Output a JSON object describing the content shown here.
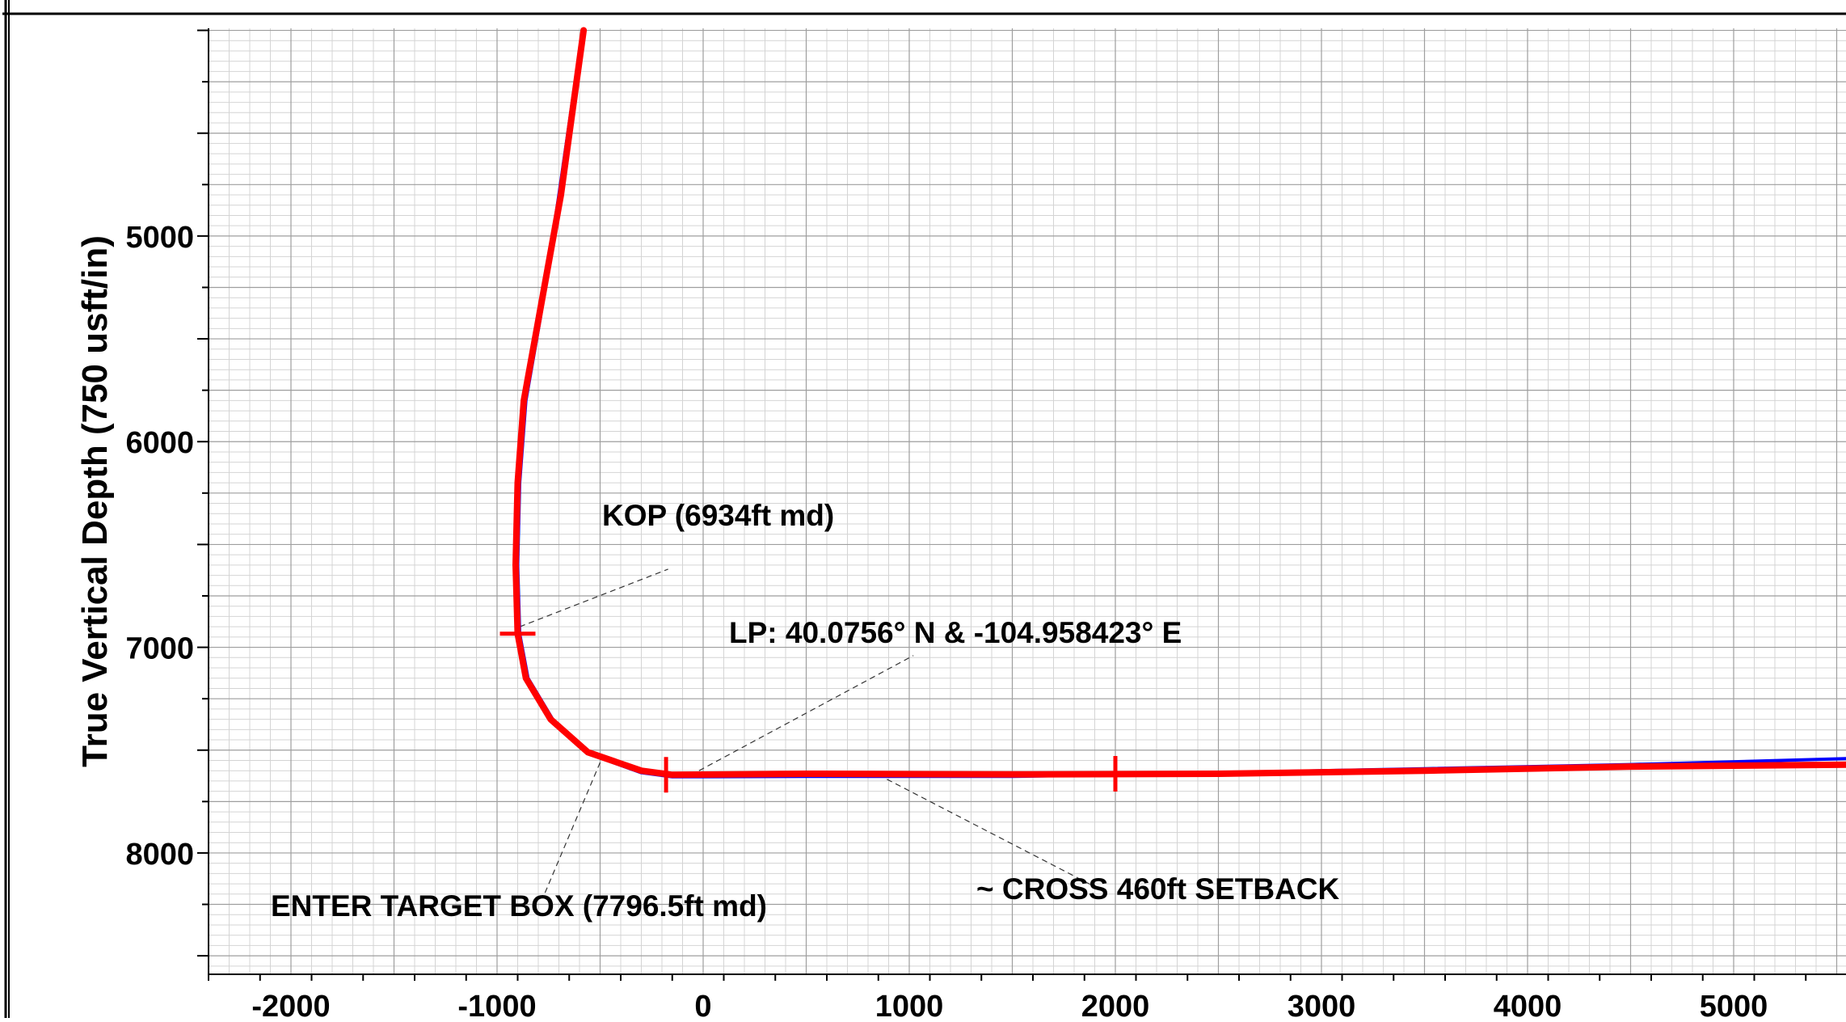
{
  "chart_data": {
    "type": "line",
    "ylabel": "True Vertical Depth (750 usft/in)",
    "xlabel": "",
    "title": "",
    "xlim": [
      -2400,
      5600
    ],
    "ylim": [
      8590,
      3990
    ],
    "x_ticks": [
      -2000,
      -1000,
      0,
      1000,
      2000,
      3000,
      4000,
      5000
    ],
    "x_tick_labels": [
      "-2000",
      "-1000",
      "0",
      "1000",
      "2000",
      "3000",
      "4000",
      "5000"
    ],
    "y_ticks": [
      5000,
      6000,
      7000,
      8000
    ],
    "y_tick_labels": [
      "5000",
      "6000",
      "7000",
      "8000"
    ],
    "grid": true,
    "series": [
      {
        "color": "#0000ff",
        "values": [
          {
            "x": -585,
            "y": 4000
          },
          {
            "x": -700,
            "y": 4800
          },
          {
            "x": -790,
            "y": 5400
          },
          {
            "x": -860,
            "y": 5800
          },
          {
            "x": -890,
            "y": 6200
          },
          {
            "x": -900,
            "y": 6600
          },
          {
            "x": -890,
            "y": 6934
          },
          {
            "x": -850,
            "y": 7150
          },
          {
            "x": -730,
            "y": 7350
          },
          {
            "x": -550,
            "y": 7520
          },
          {
            "x": -300,
            "y": 7610
          },
          {
            "x": -150,
            "y": 7630
          },
          {
            "x": 500,
            "y": 7628
          },
          {
            "x": 1500,
            "y": 7628
          },
          {
            "x": 2500,
            "y": 7610
          },
          {
            "x": 3500,
            "y": 7590
          },
          {
            "x": 4500,
            "y": 7570
          },
          {
            "x": 5600,
            "y": 7540
          }
        ]
      },
      {
        "color": "#ff0000",
        "values": [
          {
            "x": -580,
            "y": 4000
          },
          {
            "x": -690,
            "y": 4800
          },
          {
            "x": -780,
            "y": 5300
          },
          {
            "x": -870,
            "y": 5800
          },
          {
            "x": -900,
            "y": 6200
          },
          {
            "x": -910,
            "y": 6600
          },
          {
            "x": -900,
            "y": 6934
          },
          {
            "x": -860,
            "y": 7150
          },
          {
            "x": -740,
            "y": 7350
          },
          {
            "x": -560,
            "y": 7510
          },
          {
            "x": -300,
            "y": 7600
          },
          {
            "x": -150,
            "y": 7620
          },
          {
            "x": 500,
            "y": 7615
          },
          {
            "x": 1500,
            "y": 7618
          },
          {
            "x": 2500,
            "y": 7615
          },
          {
            "x": 3500,
            "y": 7600
          },
          {
            "x": 4500,
            "y": 7580
          },
          {
            "x": 5600,
            "y": 7570
          }
        ]
      }
    ],
    "markers": [
      {
        "x": -900,
        "y": 6934,
        "orientation": "horizontal",
        "color": "#ff0000"
      },
      {
        "x": -180,
        "y": 7620,
        "orientation": "vertical",
        "color": "#ff0000"
      },
      {
        "x": 2000,
        "y": 7615,
        "orientation": "vertical",
        "color": "#ff0000"
      }
    ],
    "annotations": [
      {
        "text": "KOP (6934ft md)",
        "target": {
          "x": -890,
          "y": 6900
        },
        "label_anchor": {
          "x": -170,
          "y": 6620
        }
      },
      {
        "text": "LP: 40.0756° N & -104.958423° E",
        "target": {
          "x": -20,
          "y": 7600
        },
        "label_anchor": {
          "x": 1020,
          "y": 7040
        }
      },
      {
        "text": "ENTER TARGET BOX (7796.5ft md)",
        "target": {
          "x": -500,
          "y": 7560
        },
        "label_anchor": {
          "x": -770,
          "y": 8200
        }
      },
      {
        "text": "~ CROSS 460ft SETBACK",
        "target": {
          "x": 850,
          "y": 7620
        },
        "label_anchor": {
          "x": 1950,
          "y": 8190
        }
      }
    ]
  }
}
